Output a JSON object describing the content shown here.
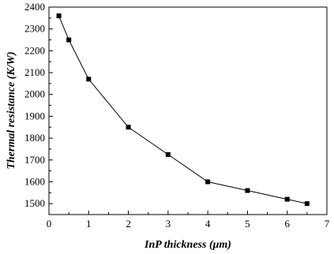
{
  "chart_data": {
    "type": "line",
    "title": "",
    "xlabel": "InP thickness (μm)",
    "ylabel": "Thermal resistance (K/W)",
    "xlim": [
      0,
      7
    ],
    "ylim": [
      1450,
      2400
    ],
    "xticks": [
      0,
      1,
      2,
      3,
      4,
      5,
      6,
      7
    ],
    "yticks": [
      1500,
      1600,
      1700,
      1800,
      1900,
      2000,
      2100,
      2200,
      2300,
      2400
    ],
    "grid": false,
    "legend": "none",
    "marker": "square",
    "color": "#000000",
    "series": [
      {
        "x": [
          0.25,
          0.5,
          1,
          2,
          3,
          4,
          5,
          6,
          6.5
        ],
        "y": [
          2360,
          2250,
          2070,
          1850,
          1725,
          1600,
          1560,
          1520,
          1500
        ]
      }
    ]
  }
}
